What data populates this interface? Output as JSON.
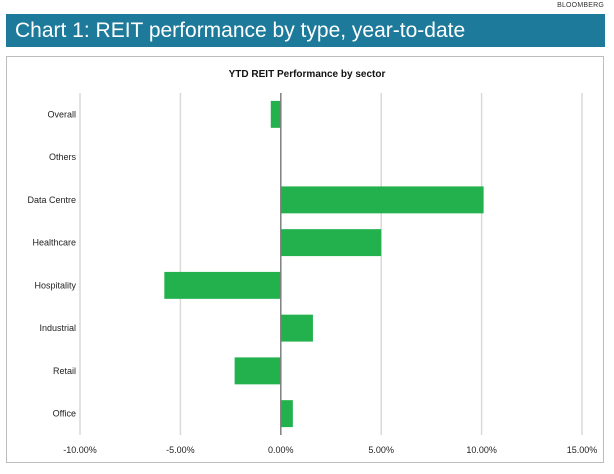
{
  "header": {
    "source": "BLOOMBERG",
    "title": "Chart 1: REIT performance by type, year-to-date"
  },
  "colors": {
    "title_bar": "#1d7a9a",
    "bar": "#22b14c",
    "gridline": "#d9d9d9",
    "zero_axis": "#7f7f7f"
  },
  "chart_data": {
    "type": "bar",
    "orientation": "horizontal",
    "title": "YTD REIT Performance by sector",
    "categories": [
      "Overall",
      "Others",
      "Data Centre",
      "Healthcare",
      "Hospitality",
      "Industrial",
      "Retail",
      "Office"
    ],
    "values": [
      -0.5,
      0.0,
      10.1,
      5.0,
      -5.8,
      1.6,
      -2.3,
      0.6
    ],
    "xlim": [
      -10,
      15
    ],
    "xticks": [
      -10,
      -5,
      0,
      5,
      10,
      15
    ],
    "xtick_labels": [
      "-10.00%",
      "-5.00%",
      "0.00%",
      "5.00%",
      "10.00%",
      "15.00%"
    ],
    "xlabel": "",
    "ylabel": "",
    "grid": true,
    "legend": "none"
  }
}
